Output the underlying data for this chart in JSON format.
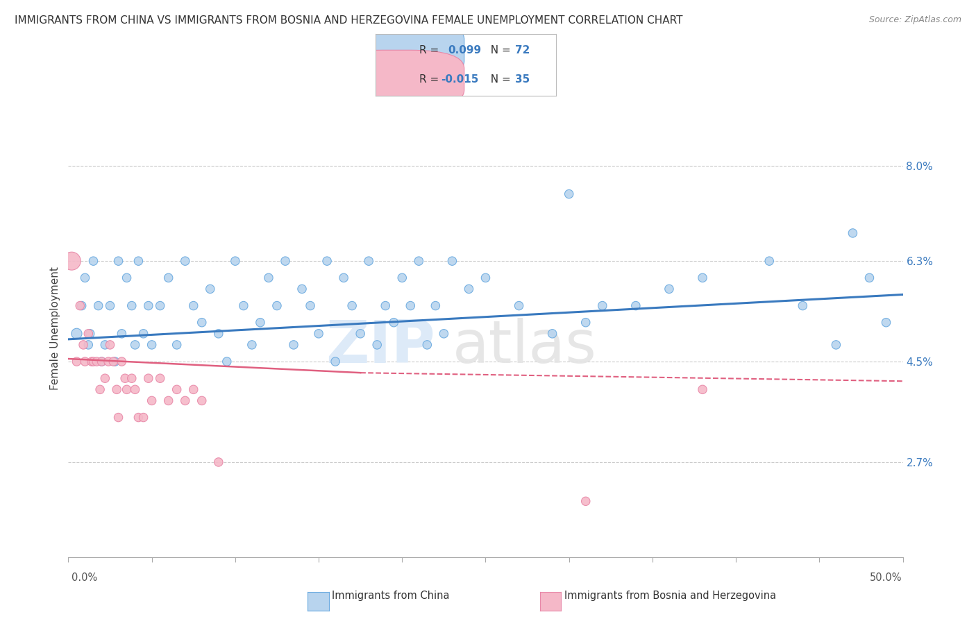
{
  "title": "IMMIGRANTS FROM CHINA VS IMMIGRANTS FROM BOSNIA AND HERZEGOVINA FEMALE UNEMPLOYMENT CORRELATION CHART",
  "source": "Source: ZipAtlas.com",
  "ylabel": "Female Unemployment",
  "xlim": [
    0.0,
    0.5
  ],
  "ylim": [
    0.01,
    0.092
  ],
  "ytick_values": [
    0.08,
    0.063,
    0.045,
    0.027
  ],
  "ytick_labels": [
    "8.0%",
    "6.3%",
    "4.5%",
    "2.7%"
  ],
  "china_color": "#b8d4ee",
  "china_edge_color": "#6aaae0",
  "bosnia_color": "#f5b8c8",
  "bosnia_edge_color": "#e888a8",
  "china_line_color": "#3a7abf",
  "bosnia_line_color": "#e06080",
  "china_label": "Immigrants from China",
  "bosnia_label": "Immigrants from Bosnia and Herzegovina",
  "china_R": "0.099",
  "china_N": "72",
  "bosnia_R": "-0.015",
  "bosnia_N": "35",
  "china_trend_x0": 0.0,
  "china_trend_x1": 0.5,
  "china_trend_y0": 0.049,
  "china_trend_y1": 0.057,
  "bosnia_trend_solid_x0": 0.0,
  "bosnia_trend_solid_x1": 0.175,
  "bosnia_trend_solid_y0": 0.0455,
  "bosnia_trend_solid_y1": 0.043,
  "bosnia_trend_dash_x0": 0.175,
  "bosnia_trend_dash_x1": 0.5,
  "bosnia_trend_dash_y0": 0.043,
  "bosnia_trend_dash_y1": 0.0415,
  "china_x": [
    0.005,
    0.008,
    0.01,
    0.012,
    0.013,
    0.015,
    0.018,
    0.02,
    0.022,
    0.025,
    0.028,
    0.03,
    0.032,
    0.035,
    0.038,
    0.04,
    0.042,
    0.045,
    0.048,
    0.05,
    0.055,
    0.06,
    0.065,
    0.07,
    0.075,
    0.08,
    0.085,
    0.09,
    0.095,
    0.1,
    0.105,
    0.11,
    0.115,
    0.12,
    0.125,
    0.13,
    0.135,
    0.14,
    0.145,
    0.15,
    0.155,
    0.16,
    0.165,
    0.17,
    0.175,
    0.18,
    0.185,
    0.19,
    0.195,
    0.2,
    0.205,
    0.21,
    0.215,
    0.22,
    0.225,
    0.23,
    0.24,
    0.25,
    0.27,
    0.29,
    0.31,
    0.38,
    0.42,
    0.47,
    0.49,
    0.34,
    0.36,
    0.44,
    0.46,
    0.48,
    0.32,
    0.3
  ],
  "china_y": [
    0.05,
    0.055,
    0.06,
    0.048,
    0.05,
    0.063,
    0.055,
    0.045,
    0.048,
    0.055,
    0.045,
    0.063,
    0.05,
    0.06,
    0.055,
    0.048,
    0.063,
    0.05,
    0.055,
    0.048,
    0.055,
    0.06,
    0.048,
    0.063,
    0.055,
    0.052,
    0.058,
    0.05,
    0.045,
    0.063,
    0.055,
    0.048,
    0.052,
    0.06,
    0.055,
    0.063,
    0.048,
    0.058,
    0.055,
    0.05,
    0.063,
    0.045,
    0.06,
    0.055,
    0.05,
    0.063,
    0.048,
    0.055,
    0.052,
    0.06,
    0.055,
    0.063,
    0.048,
    0.055,
    0.05,
    0.063,
    0.058,
    0.06,
    0.055,
    0.05,
    0.052,
    0.06,
    0.063,
    0.068,
    0.052,
    0.055,
    0.058,
    0.055,
    0.048,
    0.06,
    0.055,
    0.075
  ],
  "china_size": [
    120,
    80,
    80,
    80,
    80,
    80,
    80,
    80,
    80,
    80,
    80,
    80,
    80,
    80,
    80,
    80,
    80,
    80,
    80,
    80,
    80,
    80,
    80,
    80,
    80,
    80,
    80,
    80,
    80,
    80,
    80,
    80,
    80,
    80,
    80,
    80,
    80,
    80,
    80,
    80,
    80,
    80,
    80,
    80,
    80,
    80,
    80,
    80,
    80,
    80,
    80,
    80,
    80,
    80,
    80,
    80,
    80,
    80,
    80,
    80,
    80,
    80,
    80,
    80,
    80,
    80,
    80,
    80,
    80,
    80,
    80,
    80
  ],
  "bosnia_x": [
    0.002,
    0.005,
    0.007,
    0.009,
    0.01,
    0.012,
    0.014,
    0.015,
    0.017,
    0.019,
    0.02,
    0.022,
    0.024,
    0.025,
    0.027,
    0.029,
    0.03,
    0.032,
    0.034,
    0.035,
    0.038,
    0.04,
    0.042,
    0.045,
    0.048,
    0.05,
    0.055,
    0.06,
    0.065,
    0.07,
    0.075,
    0.08,
    0.09,
    0.31,
    0.38
  ],
  "bosnia_y": [
    0.063,
    0.045,
    0.055,
    0.048,
    0.045,
    0.05,
    0.045,
    0.045,
    0.045,
    0.04,
    0.045,
    0.042,
    0.045,
    0.048,
    0.045,
    0.04,
    0.035,
    0.045,
    0.042,
    0.04,
    0.042,
    0.04,
    0.035,
    0.035,
    0.042,
    0.038,
    0.042,
    0.038,
    0.04,
    0.038,
    0.04,
    0.038,
    0.027,
    0.02,
    0.04
  ],
  "bosnia_size": [
    350,
    80,
    80,
    80,
    80,
    80,
    80,
    80,
    80,
    80,
    80,
    80,
    80,
    80,
    80,
    80,
    80,
    80,
    80,
    80,
    80,
    80,
    80,
    80,
    80,
    80,
    80,
    80,
    80,
    80,
    80,
    80,
    80,
    80,
    80
  ],
  "bg_color": "#ffffff",
  "grid_color": "#cccccc",
  "title_fontsize": 11,
  "source_fontsize": 9,
  "tick_label_fontsize": 11,
  "ylabel_fontsize": 11
}
